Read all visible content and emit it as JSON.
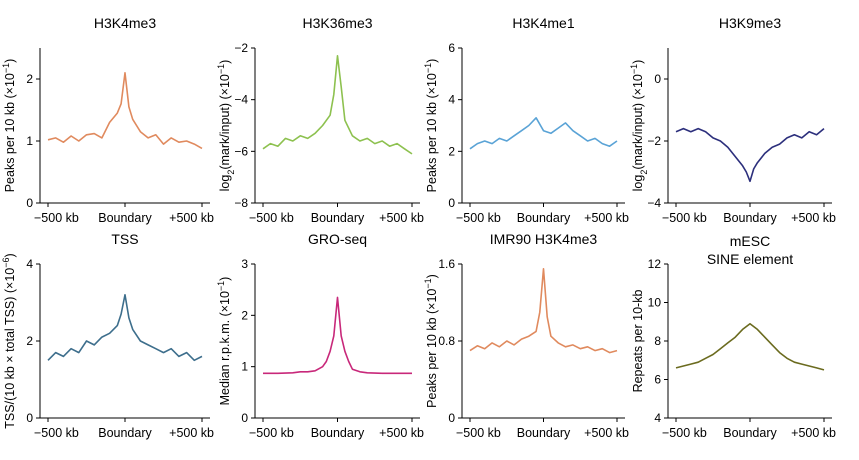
{
  "chart_data": [
    {
      "type": "line",
      "title": "H3K4me3",
      "title2": "",
      "ylabel": "Peaks per 10 kb (×10⁻¹)",
      "ylabel_html": "Peaks per 10 kb (×10<tspan baseline-shift=\"super\" font-size=\"9\">−1</tspan>)",
      "ylim": [
        0,
        2.5
      ],
      "yticks": [
        "0",
        "1",
        "2"
      ],
      "yticks_values": [
        0,
        1,
        2
      ],
      "xtick_labels": [
        "−500 kb",
        "Boundary",
        "+500 kb"
      ],
      "xlim": [
        -500,
        500
      ],
      "color": "#e08a5e",
      "x": [
        -500,
        -450,
        -400,
        -350,
        -300,
        -250,
        -200,
        -150,
        -100,
        -50,
        -25,
        0,
        25,
        50,
        100,
        150,
        200,
        250,
        300,
        350,
        400,
        450,
        500
      ],
      "y": [
        1.02,
        1.05,
        0.98,
        1.08,
        1.0,
        1.1,
        1.12,
        1.05,
        1.3,
        1.45,
        1.6,
        2.1,
        1.55,
        1.35,
        1.15,
        1.05,
        1.1,
        0.95,
        1.05,
        0.98,
        1.0,
        0.95,
        0.88
      ]
    },
    {
      "type": "line",
      "title": "H3K36me3",
      "title2": "",
      "ylabel": "log₂(mark/input) (×10⁻¹)",
      "ylabel_html": "log<tspan baseline-shift=\"sub\" font-size=\"9\">2</tspan>(mark/input) (×10<tspan baseline-shift=\"super\" font-size=\"9\">−1</tspan>)",
      "ylim": [
        -8,
        -2
      ],
      "yticks": [
        "−8",
        "−6",
        "−4",
        "−2"
      ],
      "yticks_values": [
        -8,
        -6,
        -4,
        -2
      ],
      "xtick_labels": [
        "−500 kb",
        "Boundary",
        "+500 kb"
      ],
      "xlim": [
        -500,
        500
      ],
      "color": "#8dc14f",
      "x": [
        -500,
        -450,
        -400,
        -350,
        -300,
        -250,
        -200,
        -150,
        -100,
        -50,
        -25,
        0,
        25,
        50,
        100,
        150,
        200,
        250,
        300,
        350,
        400,
        450,
        500
      ],
      "y": [
        -5.9,
        -5.7,
        -5.8,
        -5.5,
        -5.6,
        -5.4,
        -5.5,
        -5.3,
        -5.0,
        -4.6,
        -3.8,
        -2.3,
        -3.5,
        -4.8,
        -5.4,
        -5.6,
        -5.5,
        -5.7,
        -5.6,
        -5.8,
        -5.7,
        -5.9,
        -6.1
      ]
    },
    {
      "type": "line",
      "title": "H3K4me1",
      "title2": "",
      "ylabel": "Peaks per 10 kb (×10⁻¹)",
      "ylabel_html": "Peaks per 10 kb (×10<tspan baseline-shift=\"super\" font-size=\"9\">−1</tspan>)",
      "ylim": [
        0,
        6
      ],
      "yticks": [
        "0",
        "2",
        "4",
        "6"
      ],
      "yticks_values": [
        0,
        2,
        4,
        6
      ],
      "xtick_labels": [
        "−500 kb",
        "Boundary",
        "+500 kb"
      ],
      "xlim": [
        -500,
        500
      ],
      "color": "#5aa3d6",
      "x": [
        -500,
        -450,
        -400,
        -350,
        -300,
        -250,
        -200,
        -150,
        -100,
        -50,
        0,
        50,
        100,
        150,
        200,
        250,
        300,
        350,
        400,
        450,
        500
      ],
      "y": [
        2.1,
        2.3,
        2.4,
        2.3,
        2.5,
        2.4,
        2.6,
        2.8,
        3.0,
        3.3,
        2.8,
        2.7,
        2.9,
        3.1,
        2.8,
        2.6,
        2.4,
        2.5,
        2.3,
        2.2,
        2.4
      ]
    },
    {
      "type": "line",
      "title": "H3K9me3",
      "title2": "",
      "ylabel": "log₂(mark/input) (×10⁻¹)",
      "ylabel_html": "log<tspan baseline-shift=\"sub\" font-size=\"9\">2</tspan>(mark/input) (×10<tspan baseline-shift=\"super\" font-size=\"9\">−1</tspan>)",
      "ylim": [
        -4,
        1
      ],
      "yticks": [
        "−4",
        "−2",
        "0"
      ],
      "yticks_values": [
        -4,
        -2,
        0
      ],
      "xtick_labels": [
        "−500 kb",
        "Boundary",
        "+500 kb"
      ],
      "xlim": [
        -500,
        500
      ],
      "color": "#2c2f7c",
      "x": [
        -500,
        -450,
        -400,
        -350,
        -300,
        -250,
        -200,
        -150,
        -100,
        -50,
        -25,
        0,
        25,
        50,
        100,
        150,
        200,
        250,
        300,
        350,
        400,
        450,
        500
      ],
      "y": [
        -1.7,
        -1.6,
        -1.7,
        -1.6,
        -1.7,
        -1.9,
        -2.0,
        -2.2,
        -2.5,
        -2.8,
        -3.0,
        -3.3,
        -2.9,
        -2.7,
        -2.4,
        -2.2,
        -2.1,
        -1.9,
        -1.8,
        -1.9,
        -1.7,
        -1.8,
        -1.6
      ]
    },
    {
      "type": "line",
      "title": "TSS",
      "title2": "",
      "ylabel": "TSS/(10 kb × total TSS) (×10⁻⁶)",
      "ylabel_html": "TSS/(10 kb × total TSS) (×10<tspan baseline-shift=\"super\" font-size=\"9\">−6</tspan>)",
      "ylim": [
        0,
        4
      ],
      "yticks": [
        "0",
        "2",
        "4"
      ],
      "yticks_values": [
        0,
        2,
        4
      ],
      "xtick_labels": [
        "−500 kb",
        "Boundary",
        "+500 kb"
      ],
      "xlim": [
        -500,
        500
      ],
      "color": "#3d6e8c",
      "x": [
        -500,
        -450,
        -400,
        -350,
        -300,
        -250,
        -200,
        -150,
        -100,
        -50,
        -25,
        0,
        25,
        50,
        100,
        150,
        200,
        250,
        300,
        350,
        400,
        450,
        500
      ],
      "y": [
        1.5,
        1.7,
        1.6,
        1.8,
        1.7,
        2.0,
        1.9,
        2.1,
        2.2,
        2.4,
        2.7,
        3.2,
        2.6,
        2.3,
        2.0,
        1.9,
        1.8,
        1.7,
        1.8,
        1.6,
        1.7,
        1.5,
        1.6
      ]
    },
    {
      "type": "line",
      "title": "GRO-seq",
      "title2": "",
      "ylabel": "Median r.p.k.m. (×10⁻¹)",
      "ylabel_html": "Median r.p.k.m. (×10<tspan baseline-shift=\"super\" font-size=\"9\">−1</tspan>)",
      "ylim": [
        0,
        3
      ],
      "yticks": [
        "0",
        "1",
        "2",
        "3"
      ],
      "yticks_values": [
        0,
        1,
        2,
        3
      ],
      "xtick_labels": [
        "−500 kb",
        "Boundary",
        "+500 kb"
      ],
      "xlim": [
        -500,
        500
      ],
      "color": "#c8287a",
      "x": [
        -500,
        -400,
        -300,
        -250,
        -200,
        -150,
        -100,
        -75,
        -50,
        -25,
        0,
        25,
        50,
        75,
        100,
        150,
        200,
        300,
        400,
        500
      ],
      "y": [
        0.87,
        0.87,
        0.88,
        0.9,
        0.9,
        0.92,
        1.0,
        1.1,
        1.3,
        1.6,
        2.35,
        1.6,
        1.3,
        1.1,
        0.95,
        0.9,
        0.88,
        0.87,
        0.87,
        0.87
      ]
    },
    {
      "type": "line",
      "title": "IMR90 H3K4me3",
      "title2": "",
      "ylabel": "Peaks per 10 kb (×10⁻¹)",
      "ylabel_html": "Peaks per 10 kb (×10<tspan baseline-shift=\"super\" font-size=\"9\">−1</tspan>)",
      "ylim": [
        0,
        1.6
      ],
      "yticks": [
        "0",
        "0.8",
        "1.6"
      ],
      "yticks_values": [
        0,
        0.8,
        1.6
      ],
      "xtick_labels": [
        "−500 kb",
        "Boundary",
        "+500 kb"
      ],
      "xlim": [
        -500,
        500
      ],
      "color": "#e08a5e",
      "x": [
        -500,
        -450,
        -400,
        -350,
        -300,
        -250,
        -200,
        -150,
        -100,
        -50,
        -25,
        0,
        25,
        50,
        100,
        150,
        200,
        250,
        300,
        350,
        400,
        450,
        500
      ],
      "y": [
        0.7,
        0.75,
        0.72,
        0.78,
        0.74,
        0.8,
        0.76,
        0.82,
        0.85,
        0.9,
        1.1,
        1.55,
        1.05,
        0.85,
        0.78,
        0.74,
        0.76,
        0.72,
        0.74,
        0.7,
        0.72,
        0.68,
        0.7
      ]
    },
    {
      "type": "line",
      "title": "mESC",
      "title2": "SINE element",
      "ylabel": "Repeats per 10-kb",
      "ylabel_html": "Repeats per 10-kb",
      "ylim": [
        4,
        12
      ],
      "yticks": [
        "4",
        "6",
        "8",
        "10",
        "12"
      ],
      "yticks_values": [
        4,
        6,
        8,
        10,
        12
      ],
      "xtick_labels": [
        "−500 kb",
        "Boundary",
        "+500 kb"
      ],
      "xlim": [
        -500,
        500
      ],
      "color": "#6b6b1f",
      "x": [
        -500,
        -450,
        -400,
        -350,
        -300,
        -250,
        -200,
        -150,
        -100,
        -50,
        0,
        50,
        100,
        150,
        200,
        250,
        300,
        350,
        400,
        450,
        500
      ],
      "y": [
        6.6,
        6.7,
        6.8,
        6.9,
        7.1,
        7.3,
        7.6,
        7.9,
        8.2,
        8.6,
        8.9,
        8.6,
        8.2,
        7.8,
        7.4,
        7.1,
        6.9,
        6.8,
        6.7,
        6.6,
        6.5
      ]
    }
  ]
}
